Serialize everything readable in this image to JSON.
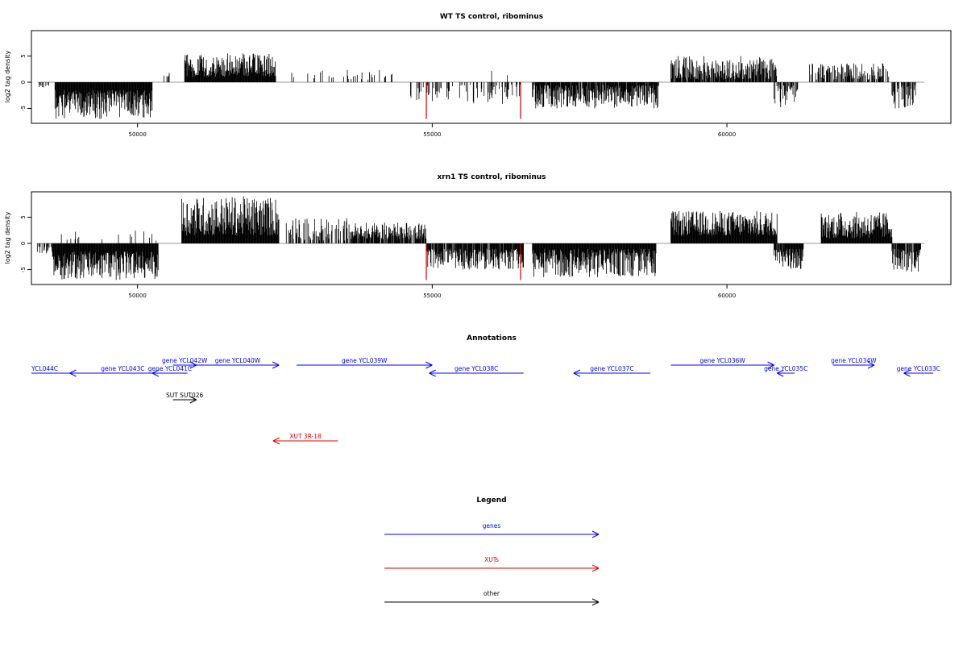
{
  "colors": {
    "signal": "#000000",
    "highlight": "#cc0000",
    "gene": "#0000ff",
    "xut": "#dd0000",
    "other": "#000000",
    "baseline": "#999999",
    "frame": "#000000"
  },
  "chart_data": [
    {
      "type": "bar",
      "title": "WT TS control, ribominus",
      "ylabel": "log2 tag density",
      "xlim": [
        48200,
        63800
      ],
      "ylim": [
        -7.5,
        10
      ],
      "x_ticks": [
        50000,
        55000,
        60000
      ],
      "x_tick_labels": [
        "50000",
        "55000",
        "60000"
      ],
      "y_ticks": [
        -5,
        0,
        5
      ],
      "y_tick_labels": [
        "-5",
        "0",
        "5"
      ],
      "highlight_x": [
        54900,
        56500
      ],
      "highlight_depth": -7,
      "regions": [
        {
          "start": 48300,
          "end": 48500,
          "sign": -1,
          "min": 0.5,
          "max": 1.5,
          "density": 0.3
        },
        {
          "start": 48600,
          "end": 50250,
          "sign": -1,
          "min": 1.5,
          "max": 7.0,
          "density": 1.0
        },
        {
          "start": 50450,
          "end": 50550,
          "sign": 1,
          "min": 1.0,
          "max": 1.8,
          "density": 0.2
        },
        {
          "start": 50800,
          "end": 52350,
          "sign": 1,
          "min": 1.0,
          "max": 5.5,
          "density": 1.0
        },
        {
          "start": 52600,
          "end": 54400,
          "sign": 1,
          "min": 0.5,
          "max": 2.6,
          "density": 0.12
        },
        {
          "start": 54600,
          "end": 56500,
          "sign": -1,
          "min": 0.5,
          "max": 4.2,
          "density": 0.28
        },
        {
          "start": 56000,
          "end": 56450,
          "sign": 1,
          "min": 0.4,
          "max": 2.5,
          "density": 0.06
        },
        {
          "start": 56700,
          "end": 58850,
          "sign": -1,
          "min": 0.5,
          "max": 5.0,
          "density": 0.9
        },
        {
          "start": 59050,
          "end": 60850,
          "sign": 1,
          "min": 0.5,
          "max": 5.0,
          "density": 0.85
        },
        {
          "start": 60800,
          "end": 61200,
          "sign": -1,
          "min": 0.5,
          "max": 5.2,
          "density": 0.55
        },
        {
          "start": 61400,
          "end": 62750,
          "sign": 1,
          "min": 0.5,
          "max": 3.6,
          "density": 0.6
        },
        {
          "start": 62800,
          "end": 63200,
          "sign": -1,
          "min": 0.5,
          "max": 5.0,
          "density": 0.6
        }
      ]
    },
    {
      "type": "bar",
      "title": "xrn1 TS control, ribominus",
      "ylabel": "log2 tag density",
      "xlim": [
        48200,
        63800
      ],
      "ylim": [
        -7.5,
        10
      ],
      "x_ticks": [
        50000,
        55000,
        60000
      ],
      "x_tick_labels": [
        "50000",
        "55000",
        "60000"
      ],
      "y_ticks": [
        -5,
        0,
        5
      ],
      "y_tick_labels": [
        "-5",
        "0",
        "5"
      ],
      "highlight_x": [
        54900,
        56500
      ],
      "highlight_depth": -7,
      "regions": [
        {
          "start": 48300,
          "end": 48600,
          "sign": -1,
          "min": 0.5,
          "max": 2.0,
          "density": 0.5
        },
        {
          "start": 48550,
          "end": 50350,
          "sign": -1,
          "min": 1.5,
          "max": 7.0,
          "density": 1.0
        },
        {
          "start": 48700,
          "end": 50400,
          "sign": 1,
          "min": 0.5,
          "max": 2.5,
          "density": 0.05
        },
        {
          "start": 50750,
          "end": 52400,
          "sign": 1,
          "min": 1.5,
          "max": 9.0,
          "density": 1.0
        },
        {
          "start": 52500,
          "end": 53600,
          "sign": 1,
          "min": 0.5,
          "max": 4.8,
          "density": 0.5
        },
        {
          "start": 53600,
          "end": 54900,
          "sign": 1,
          "min": 0.8,
          "max": 4.0,
          "density": 0.8
        },
        {
          "start": 54900,
          "end": 56550,
          "sign": -1,
          "min": 1.0,
          "max": 5.0,
          "density": 0.9
        },
        {
          "start": 56700,
          "end": 58800,
          "sign": -1,
          "min": 1.0,
          "max": 6.5,
          "density": 1.0
        },
        {
          "start": 59050,
          "end": 60850,
          "sign": 1,
          "min": 1.5,
          "max": 6.2,
          "density": 1.0
        },
        {
          "start": 60800,
          "end": 61300,
          "sign": -1,
          "min": 1.0,
          "max": 5.2,
          "density": 0.9
        },
        {
          "start": 61600,
          "end": 62800,
          "sign": 1,
          "min": 1.0,
          "max": 6.0,
          "density": 1.0
        },
        {
          "start": 62800,
          "end": 63300,
          "sign": -1,
          "min": 1.0,
          "max": 5.5,
          "density": 0.9
        }
      ]
    }
  ],
  "annotations": {
    "title": "Annotations",
    "xlim": [
      48200,
      63800
    ],
    "tracks": [
      {
        "label": "YCL044C",
        "type": "gene",
        "start": 48200,
        "end": 48950,
        "strand": "-",
        "row": 1,
        "label_pos": "left",
        "arrow": false
      },
      {
        "label": "gene YCL043C",
        "type": "gene",
        "start": 48850,
        "end": 50650,
        "strand": "-",
        "row": 1,
        "label_pos": "center",
        "arrow": true
      },
      {
        "label": "gene YCL042W",
        "type": "gene",
        "start": 50600,
        "end": 51000,
        "strand": "+",
        "row": 0,
        "label_pos": "center",
        "arrow": true
      },
      {
        "label": "gene YCL041C",
        "type": "gene",
        "start": 50250,
        "end": 50850,
        "strand": "-",
        "row": 1,
        "label_pos": "center",
        "arrow": true
      },
      {
        "label": "gene YCL040W",
        "type": "gene",
        "start": 51000,
        "end": 52400,
        "strand": "+",
        "row": 0,
        "label_pos": "center",
        "arrow": true
      },
      {
        "label": "gene YCL039W",
        "type": "gene",
        "start": 52700,
        "end": 55000,
        "strand": "+",
        "row": 0,
        "label_pos": "center",
        "arrow": true
      },
      {
        "label": "gene YCL038C",
        "type": "gene",
        "start": 54950,
        "end": 56550,
        "strand": "-",
        "row": 1,
        "label_pos": "center",
        "arrow": true
      },
      {
        "label": "gene YCL037C",
        "type": "gene",
        "start": 57400,
        "end": 58700,
        "strand": "-",
        "row": 1,
        "label_pos": "center",
        "arrow": true
      },
      {
        "label": "gene YCL036W",
        "type": "gene",
        "start": 59050,
        "end": 60800,
        "strand": "+",
        "row": 0,
        "label_pos": "center",
        "arrow": true
      },
      {
        "label": "gene YCL035C",
        "type": "gene",
        "start": 60850,
        "end": 61150,
        "strand": "-",
        "row": 1,
        "label_pos": "center",
        "arrow": true
      },
      {
        "label": "gene YCL034W",
        "type": "gene",
        "start": 61800,
        "end": 62500,
        "strand": "+",
        "row": 0,
        "label_pos": "center",
        "arrow": true
      },
      {
        "label": "gene YCL033C",
        "type": "gene",
        "start": 63000,
        "end": 63500,
        "strand": "-",
        "row": 1,
        "label_pos": "center",
        "arrow": true
      },
      {
        "label": "SUT SUT026",
        "type": "other",
        "start": 50600,
        "end": 51000,
        "strand": "+",
        "row": 2,
        "label_pos": "center",
        "arrow": true
      },
      {
        "label": "XUT 3R-18",
        "type": "xut",
        "start": 52300,
        "end": 53400,
        "strand": "-",
        "row": 3,
        "label_pos": "center",
        "arrow": true
      }
    ]
  },
  "legend": {
    "title": "Legend",
    "items": [
      {
        "label": "genes",
        "type": "gene"
      },
      {
        "label": "XUTs",
        "type": "xut"
      },
      {
        "label": "other",
        "type": "other"
      }
    ]
  }
}
